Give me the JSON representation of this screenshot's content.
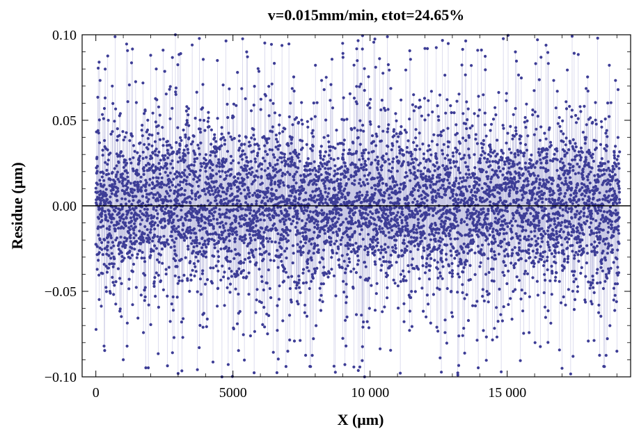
{
  "chart_data": {
    "type": "scatter",
    "title": "v=0.015mm/min, ϵtot=24.65%",
    "xlabel": "X (μm)",
    "ylabel": "Residue (μm)",
    "xlim": [
      -500,
      19500
    ],
    "ylim": [
      -0.1,
      0.1
    ],
    "xticks": [
      0,
      5000,
      10000,
      15000
    ],
    "xtick_labels": [
      "0",
      "5000",
      "10 000",
      "15 000"
    ],
    "yticks": [
      -0.1,
      -0.05,
      0.0,
      0.05,
      0.1
    ],
    "ytick_labels": [
      "−0.10",
      "−0.05",
      "0.00",
      "0.05",
      "0.10"
    ],
    "grid": false,
    "zero_line": true,
    "colors": {
      "points": "#3d3d96",
      "joining_lines": "#c8c8e4",
      "zero_line": "#000000"
    },
    "series": [
      {
        "x_start": 0,
        "x_end": 19100,
        "n_points": 6000,
        "style": "points joined by thin lines",
        "sample_points": [
          {
            "x": 0,
            "y": 0.008
          },
          {
            "x": 120,
            "y": 0.084
          },
          {
            "x": 300,
            "y": -0.082
          },
          {
            "x": 600,
            "y": 0.07
          },
          {
            "x": 1000,
            "y": -0.09
          },
          {
            "x": 2000,
            "y": 0.088
          },
          {
            "x": 2900,
            "y": 0.1
          },
          {
            "x": 3000,
            "y": -0.098
          },
          {
            "x": 4600,
            "y": -0.1
          },
          {
            "x": 5500,
            "y": 0.09
          },
          {
            "x": 7000,
            "y": -0.085
          },
          {
            "x": 9000,
            "y": 0.095
          },
          {
            "x": 9800,
            "y": -0.1
          },
          {
            "x": 12000,
            "y": 0.092
          },
          {
            "x": 13200,
            "y": -0.099
          },
          {
            "x": 15300,
            "y": 0.09
          },
          {
            "x": 17000,
            "y": -0.095
          },
          {
            "x": 18300,
            "y": 0.098
          },
          {
            "x": 19000,
            "y": -0.085
          }
        ]
      }
    ]
  }
}
